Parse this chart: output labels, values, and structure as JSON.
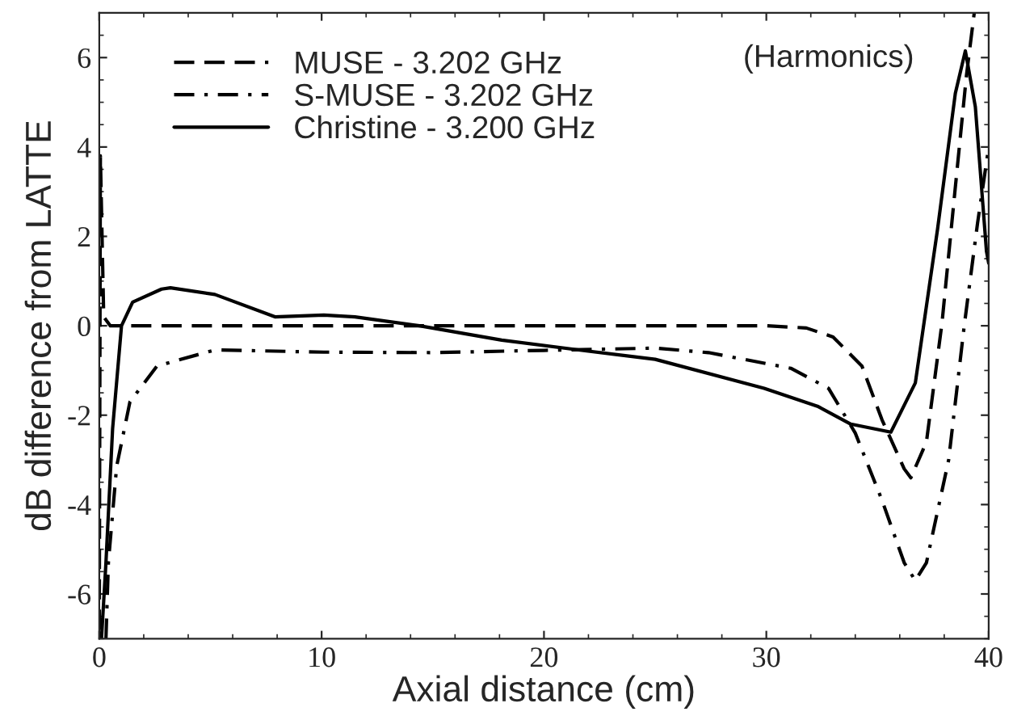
{
  "chart_data": {
    "type": "line",
    "xlabel": "Axial distance (cm)",
    "ylabel": "dB difference from LATTE",
    "annotations": [
      "(Harmonics)"
    ],
    "xlim": [
      0,
      40
    ],
    "xticks": [
      0,
      10,
      20,
      30,
      40
    ],
    "ylim": [
      -7,
      7
    ],
    "yticks": [
      -6,
      -4,
      -2,
      0,
      2,
      4,
      6
    ],
    "legend": "top left",
    "grid": false,
    "marker": "none",
    "series": [
      {
        "name": "MUSE - 3.202 GHz",
        "color": "#000000",
        "line_style": "dashed",
        "x": [
          0,
          0.05,
          0.2,
          0.5,
          10,
          20,
          30,
          31.8,
          33.0,
          34.3,
          35.2,
          36.2,
          36.5,
          37.2,
          37.9,
          38.5,
          39.0,
          39.35
        ],
        "values": [
          -6.8,
          3.8,
          0.2,
          0,
          0,
          0,
          0,
          -0.05,
          -0.25,
          -0.9,
          -2.1,
          -3.2,
          -3.4,
          -2.6,
          0.06,
          3.1,
          5.6,
          7
        ]
      },
      {
        "name": "S-MUSE - 3.202 GHz",
        "color": "#000000",
        "line_style": "dashdot",
        "x": [
          0.3,
          0.41,
          0.78,
          1.38,
          2.6,
          5.2,
          10.1,
          15,
          20,
          25,
          27.4,
          31.1,
          32.8,
          34.0,
          35.2,
          36.2,
          36.7,
          37.2,
          38.2,
          38.9,
          39.5,
          40
        ],
        "values": [
          -7,
          -5.3,
          -3.15,
          -1.7,
          -0.9,
          -0.54,
          -0.59,
          -0.6,
          -0.55,
          -0.5,
          -0.6,
          -0.95,
          -1.4,
          -2.4,
          -3.9,
          -5.3,
          -5.7,
          -5.3,
          -3.0,
          0.0,
          2.3,
          4.0
        ]
      },
      {
        "name": "Christine - 3.200 GHz",
        "color": "#000000",
        "line_style": "solid",
        "x": [
          0.1,
          0.3,
          0.6,
          1.0,
          1.5,
          2.8,
          3.2,
          5.2,
          7.9,
          10.1,
          11.5,
          14.4,
          18.1,
          21.7,
          25,
          29.9,
          32.3,
          33.8,
          35.6,
          36.7,
          37.7,
          38.5,
          38.95,
          39.4,
          39.9,
          40
        ],
        "values": [
          -7,
          -5.3,
          -2.3,
          0,
          0.53,
          0.82,
          0.85,
          0.7,
          0.2,
          0.24,
          0.2,
          0,
          -0.32,
          -0.55,
          -0.75,
          -1.4,
          -1.8,
          -2.2,
          -2.38,
          -1.28,
          2.16,
          5.2,
          6.15,
          4.9,
          1.67,
          1.4
        ]
      }
    ]
  }
}
